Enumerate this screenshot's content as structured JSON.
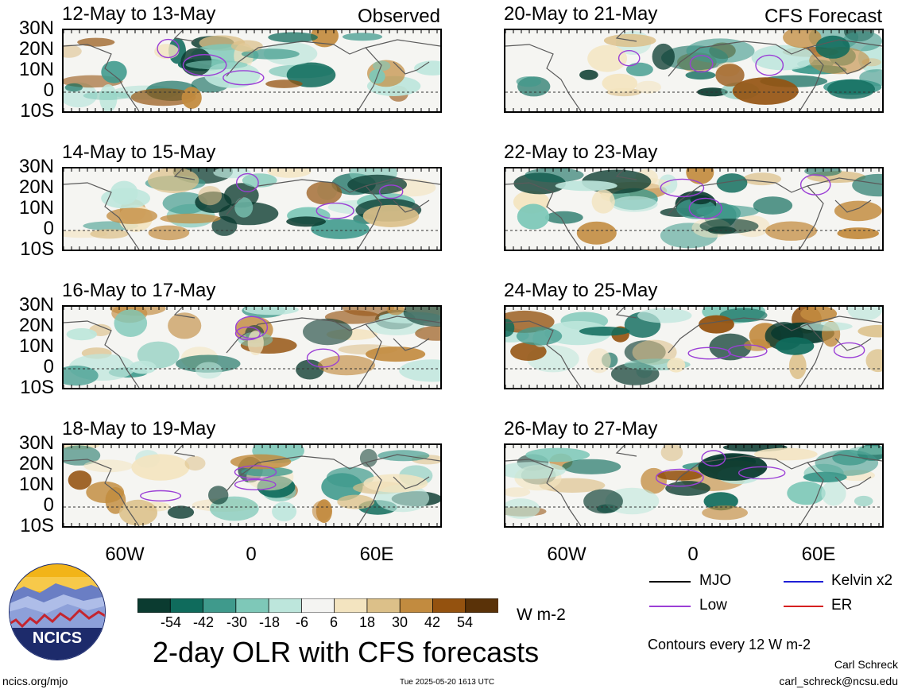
{
  "panels_left": [
    {
      "title": "12-May to 13-May",
      "corner": "Observed"
    },
    {
      "title": "14-May to 15-May",
      "corner": ""
    },
    {
      "title": "16-May to 17-May",
      "corner": ""
    },
    {
      "title": "18-May to 19-May",
      "corner": ""
    }
  ],
  "panels_right": [
    {
      "title": "20-May to 21-May",
      "corner": "CFS Forecast"
    },
    {
      "title": "22-May to 23-May",
      "corner": ""
    },
    {
      "title": "24-May to 25-May",
      "corner": ""
    },
    {
      "title": "26-May to 27-May",
      "corner": ""
    }
  ],
  "lat_labels": [
    "30N",
    "20N",
    "10N",
    "0",
    "10S"
  ],
  "lon_labels": [
    "60W",
    "0",
    "60E"
  ],
  "colorbar": {
    "ticks": [
      "-54",
      "-42",
      "-30",
      "-18",
      "-6",
      "6",
      "18",
      "30",
      "42",
      "54"
    ],
    "colors": [
      "#0b3b30",
      "#0f6b5c",
      "#3f9a8c",
      "#7ec8b8",
      "#bde6dc",
      "#f4f4f2",
      "#f3e4c0",
      "#dcc089",
      "#c28b3f",
      "#94520f",
      "#5a3208"
    ],
    "units": "W m-2"
  },
  "legend": {
    "items": [
      {
        "label": "MJO",
        "color": "#000000"
      },
      {
        "label": "Kelvin x2",
        "color": "#1f1fd6"
      },
      {
        "label": "Low",
        "color": "#9b3fd6"
      },
      {
        "label": "ER",
        "color": "#d62020"
      }
    ],
    "contours_note": "Contours every 12 W m-2"
  },
  "logo_text": "NCICS",
  "main_title": "2-day OLR with CFS forecasts",
  "footer": {
    "url": "ncics.org/mjo",
    "timestamp": "Tue 2025-05-20 1613 UTC",
    "author": "Carl Schreck",
    "email": "carl_schreck@ncsu.edu"
  }
}
